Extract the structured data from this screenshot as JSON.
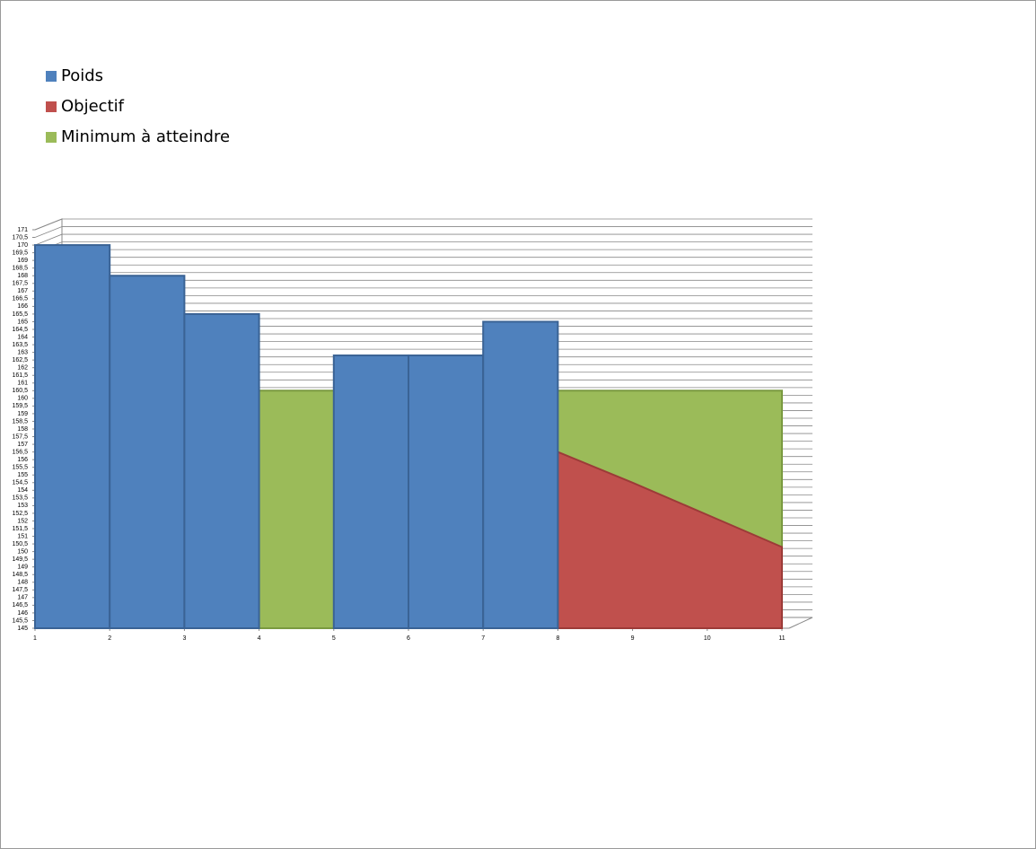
{
  "chart_data": {
    "type": "area",
    "categories": [
      1,
      2,
      3,
      4,
      5,
      6,
      7,
      8,
      9,
      10,
      11
    ],
    "series": [
      {
        "name": "Poids",
        "color": "#4f81bd",
        "step": true,
        "values": [
          170,
          168,
          165.5,
          null,
          162.8,
          162.8,
          165,
          null,
          null,
          null,
          null
        ]
      },
      {
        "name": "Objectif",
        "color": "#c0504d",
        "values": [
          null,
          null,
          null,
          null,
          null,
          null,
          null,
          156.5,
          154.5,
          152.4,
          150.3
        ]
      },
      {
        "name": "Minimum à atteindre",
        "color": "#9bbb59",
        "values": [
          160.5,
          160.5,
          160.5,
          160.5,
          160.5,
          160.5,
          160.5,
          160.5,
          160.5,
          160.5,
          160.5
        ]
      }
    ],
    "ylim": [
      145,
      171
    ],
    "yticks": [
      145,
      {
        "value": 145.5,
        "label": "145,5"
      },
      146,
      {
        "value": 146.5,
        "label": "146,5"
      },
      147,
      {
        "value": 147.5,
        "label": "147,5"
      },
      148,
      {
        "value": 148.5,
        "label": "148,5"
      },
      149,
      {
        "value": 149.5,
        "label": "149,5"
      },
      150,
      {
        "value": 150.5,
        "label": "150,5"
      },
      151,
      {
        "value": 151.5,
        "label": "151,5"
      },
      152,
      {
        "value": 152.5,
        "label": "152,5"
      },
      153,
      {
        "value": 153.5,
        "label": "153,5"
      },
      154,
      {
        "value": 154.5,
        "label": "154,5"
      },
      155,
      {
        "value": 155.5,
        "label": "155,5"
      },
      156,
      {
        "value": 156.5,
        "label": "156,5"
      },
      157,
      {
        "value": 157.5,
        "label": "157,5"
      },
      158,
      {
        "value": 158.5,
        "label": "158,5"
      },
      159,
      {
        "value": 159.5,
        "label": "159,5"
      },
      160,
      {
        "value": 160.5,
        "label": "160,5"
      },
      161,
      {
        "value": 161.5,
        "label": "161,5"
      },
      162,
      {
        "value": 162.5,
        "label": "162,5"
      },
      163,
      {
        "value": 163.5,
        "label": "163,5"
      },
      164,
      {
        "value": 164.5,
        "label": "164,5"
      },
      165,
      {
        "value": 165.5,
        "label": "165,5"
      },
      166,
      {
        "value": 166.5,
        "label": "166,5"
      },
      167,
      {
        "value": 167.5,
        "label": "167,5"
      },
      168,
      {
        "value": 168.5,
        "label": "168,5"
      },
      169,
      {
        "value": 169.5,
        "label": "169,5"
      },
      170,
      {
        "value": 170.5,
        "label": "170,5"
      },
      171
    ],
    "grid": true,
    "legend": "top-left"
  }
}
